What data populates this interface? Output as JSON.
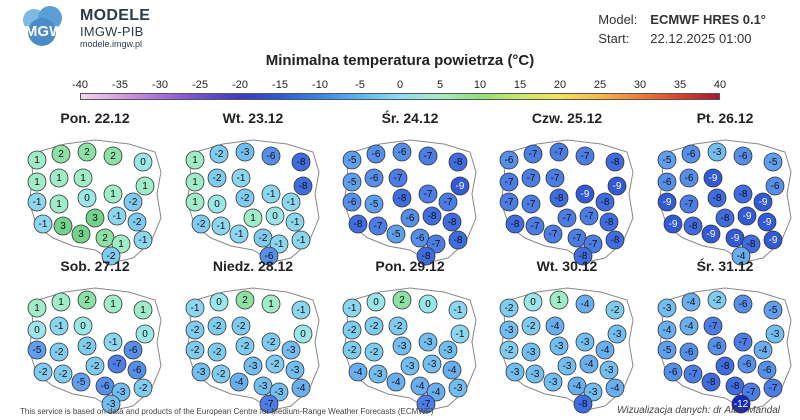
{
  "header": {
    "logo_text": "IMGW",
    "org_line1": "MODELE",
    "org_line2": "IMGW-PIB",
    "org_url": "modele.imgw.pl",
    "model_label": "Model:",
    "model_value": "ECMWF HRES 0.1°",
    "start_label": "Start:",
    "start_value": "22.12.2025 01:00"
  },
  "title": "Minimalna temperatura powietrza (°C)",
  "colorbar": {
    "ticks": [
      "-40",
      "-35",
      "-30",
      "-25",
      "-20",
      "-15",
      "-10",
      "-5",
      "0",
      "5",
      "10",
      "15",
      "20",
      "25",
      "30",
      "35",
      "40"
    ],
    "colors": [
      "#f2d7ee",
      "#d79be0",
      "#a96fd8",
      "#6f4fcf",
      "#3a3bc0",
      "#2d5bd6",
      "#3b86e3",
      "#5bb6ef",
      "#8fdcf3",
      "#a8ebc2",
      "#8fe07b",
      "#c8e96a",
      "#f2e35a",
      "#f6b94a",
      "#ef7d3a",
      "#d9452f",
      "#a6192a"
    ]
  },
  "panels": [
    {
      "day": "Pon. 22.12",
      "values": [
        "1",
        "2",
        "2",
        "2",
        "0",
        "1",
        "1",
        "1",
        "1",
        "-1",
        "1",
        "0",
        "1",
        "-2",
        "-1",
        "3",
        "3",
        "-1",
        "-2",
        "3",
        "2",
        "1",
        "-1",
        "-2"
      ]
    },
    {
      "day": "Wt. 23.12",
      "values": [
        "1",
        "-2",
        "-3",
        "-6",
        "-8",
        "1",
        "-2",
        "-1",
        "-8",
        "1",
        "0",
        "-2",
        "-1",
        "-1",
        "-2",
        "-1",
        "1",
        "0",
        "-1",
        "-1",
        "-2",
        "-1",
        "-1",
        "-6"
      ]
    },
    {
      "day": "Śr. 24.12",
      "values": [
        "-5",
        "-6",
        "-6",
        "-7",
        "-8",
        "-5",
        "-6",
        "-7",
        "-9",
        "-6",
        "-5",
        "-8",
        "-7",
        "-7",
        "-8",
        "-7",
        "-6",
        "-8",
        "-8",
        "-5",
        "-6",
        "-7",
        "-8",
        "-8"
      ]
    },
    {
      "day": "Czw. 25.12",
      "values": [
        "-6",
        "-7",
        "-7",
        "-7",
        "-8",
        "-7",
        "-7",
        "-7",
        "-9",
        "-7",
        "-7",
        "-8",
        "-9",
        "-8",
        "-8",
        "-7",
        "-7",
        "-7",
        "-8",
        "-7",
        "-7",
        "-7",
        "-8",
        "-8"
      ]
    },
    {
      "day": "Pt. 26.12",
      "values": [
        "-5",
        "-6",
        "-3",
        "-6",
        "-5",
        "-6",
        "-6",
        "-9",
        "-6",
        "-9",
        "-7",
        "-8",
        "-8",
        "-9",
        "-9",
        "-8",
        "-8",
        "-9",
        "-9",
        "-9",
        "-9",
        "-8",
        "-9",
        "-4"
      ]
    },
    {
      "day": "Sob. 27.12",
      "values": [
        "1",
        "1",
        "2",
        "1",
        "1",
        "0",
        "-1",
        "0",
        "0",
        "-5",
        "-2",
        "-2",
        "-1",
        "-6",
        "-2",
        "-2",
        "-2",
        "-7",
        "-6",
        "-5",
        "-6",
        "-3",
        "-2",
        "-3"
      ]
    },
    {
      "day": "Niedz. 28.12",
      "values": [
        "-1",
        "0",
        "2",
        "1",
        "-1",
        "-2",
        "-2",
        "-2",
        "0",
        "-2",
        "-2",
        "-2",
        "-2",
        "-3",
        "-3",
        "-2",
        "-3",
        "-2",
        "-3",
        "-4",
        "-3",
        "-3",
        "-4",
        "-7"
      ]
    },
    {
      "day": "Pon. 29.12",
      "values": [
        "-1",
        "0",
        "2",
        "0",
        "-1",
        "-2",
        "-2",
        "-2",
        "-1",
        "-2",
        "-2",
        "-3",
        "-3",
        "-3",
        "-4",
        "-3",
        "-3",
        "-3",
        "-4",
        "-4",
        "-4",
        "-4",
        "-3",
        "-7"
      ]
    },
    {
      "day": "Wt. 30.12",
      "values": [
        "-2",
        "0",
        "1",
        "-4",
        "-2",
        "-3",
        "-2",
        "-4",
        "-3",
        "-2",
        "-3",
        "-3",
        "-3",
        "-4",
        "-3",
        "-3",
        "-3",
        "-4",
        "-3",
        "-3",
        "-4",
        "-3",
        "-4",
        "-8"
      ]
    },
    {
      "day": "Śr. 31.12",
      "values": [
        "-3",
        "-4",
        "-2",
        "-6",
        "-5",
        "-4",
        "-4",
        "-7",
        "-3",
        "-5",
        "-6",
        "-6",
        "-7",
        "-4",
        "-6",
        "-7",
        "-8",
        "-6",
        "-6",
        "-8",
        "-8",
        "-7",
        "-7",
        "-12"
      ]
    }
  ],
  "footer": {
    "left": "This service is based on data and products of the European Centre for Medium-Range Weather Forecasts (ECMWF)",
    "right": "Wizualizacja danych: dr Alan Mandal"
  }
}
